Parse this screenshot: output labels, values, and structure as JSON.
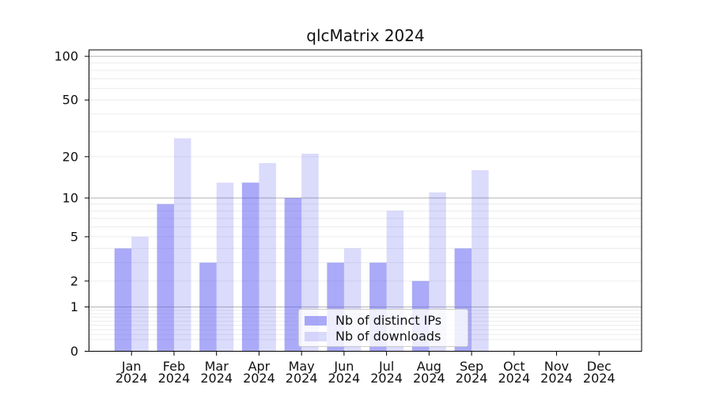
{
  "chart_data": {
    "type": "bar",
    "title": "qlcMatrix 2024",
    "categories": [
      "Jan",
      "Feb",
      "Mar",
      "Apr",
      "May",
      "Jun",
      "Jul",
      "Aug",
      "Sep",
      "Oct",
      "Nov",
      "Dec"
    ],
    "year_label": "2024",
    "series": [
      {
        "name": "Nb of distinct IPs",
        "color": "#5555f1",
        "alpha": 0.5,
        "rendered_color": "#aaaaf8",
        "values": [
          4,
          9,
          3,
          13,
          10,
          3,
          3,
          2,
          4,
          0,
          0,
          0
        ]
      },
      {
        "name": "Nb of downloads",
        "color": "#5555f1",
        "alpha": 0.21,
        "rendered_color": "#dbdbfa",
        "values": [
          5,
          27,
          13,
          18,
          21,
          4,
          8,
          11,
          16,
          0,
          0,
          0
        ]
      }
    ],
    "xlabel": "",
    "ylabel": "",
    "yscale": "log1p",
    "yticks": [
      0,
      1,
      2,
      5,
      10,
      20,
      50,
      100
    ],
    "ylim": [
      0,
      110
    ],
    "grid": true,
    "legend_position": "lower center"
  }
}
